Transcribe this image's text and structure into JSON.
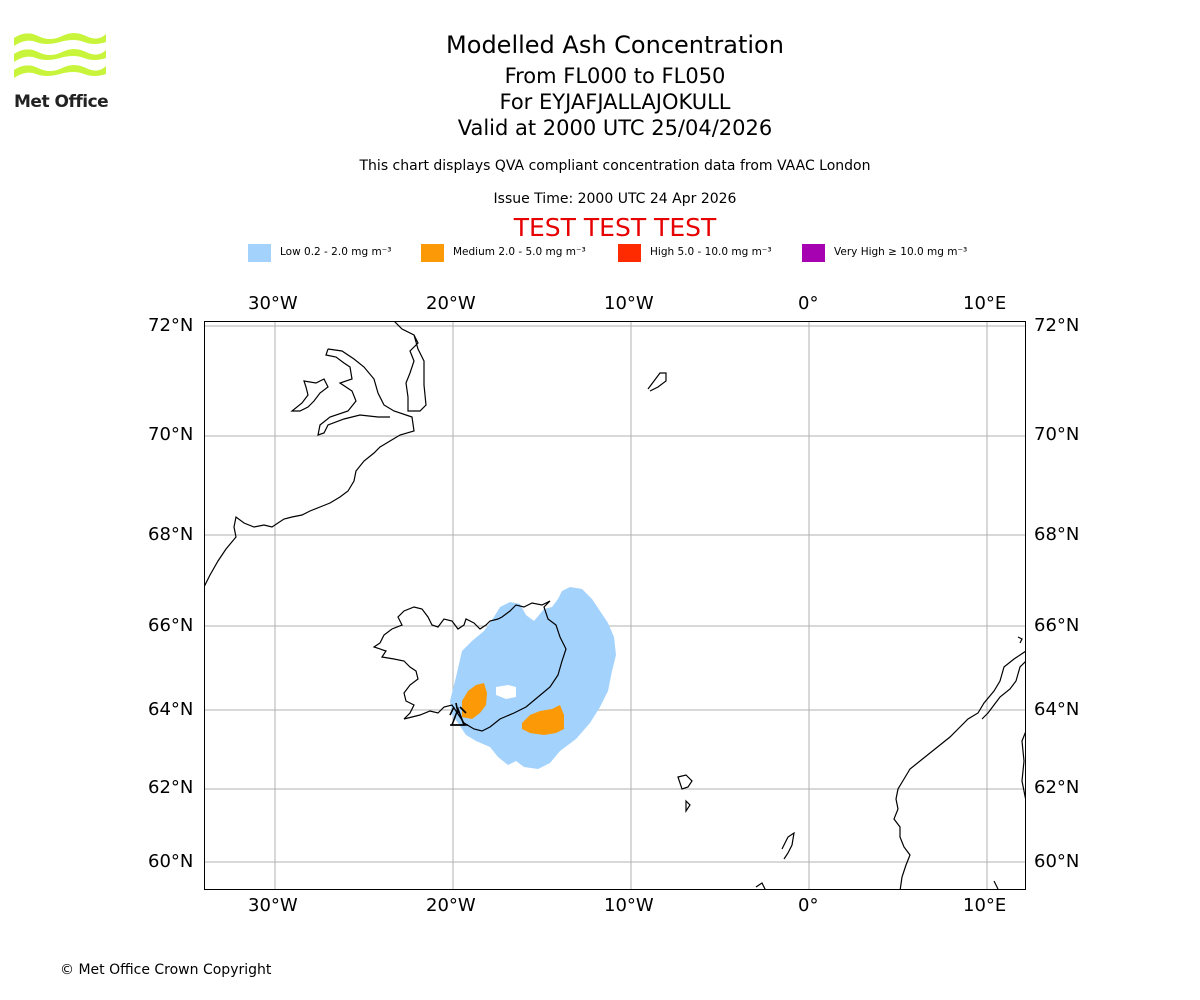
{
  "brand": {
    "logo_text": "Met Office",
    "logo_color": "#c8f53c"
  },
  "header": {
    "title": "Modelled Ash Concentration",
    "levels": "From FL000 to FL050",
    "volcano": "For EYJAFJALLAJOKULL",
    "valid": "Valid at 2000 UTC 25/04/2026",
    "description": "This chart displays QVA compliant concentration data from VAAC London",
    "issue_time": "Issue Time: 2000 UTC 24 Apr 2026",
    "test_banner": "TEST TEST TEST"
  },
  "legend": [
    {
      "label": "Low 0.2 - 2.0 mg m⁻³",
      "color": "#a3d2fd"
    },
    {
      "label": "Medium 2.0 - 5.0 mg m⁻³",
      "color": "#fb9a06"
    },
    {
      "label": "High 5.0 - 10.0 mg m⁻³",
      "color": "#ff2b00"
    },
    {
      "label": "Very High ≥ 10.0 mg m⁻³",
      "color": "#a602b1"
    }
  ],
  "map": {
    "lon_labels": [
      "30°W",
      "20°W",
      "10°W",
      "0°",
      "10°E"
    ],
    "lat_labels": [
      "72°N",
      "70°N",
      "68°N",
      "66°N",
      "64°N",
      "62°N",
      "60°N"
    ],
    "gridline_color": "#b0b0b0"
  },
  "footer": {
    "copyright": "© Met Office Crown Copyright"
  }
}
